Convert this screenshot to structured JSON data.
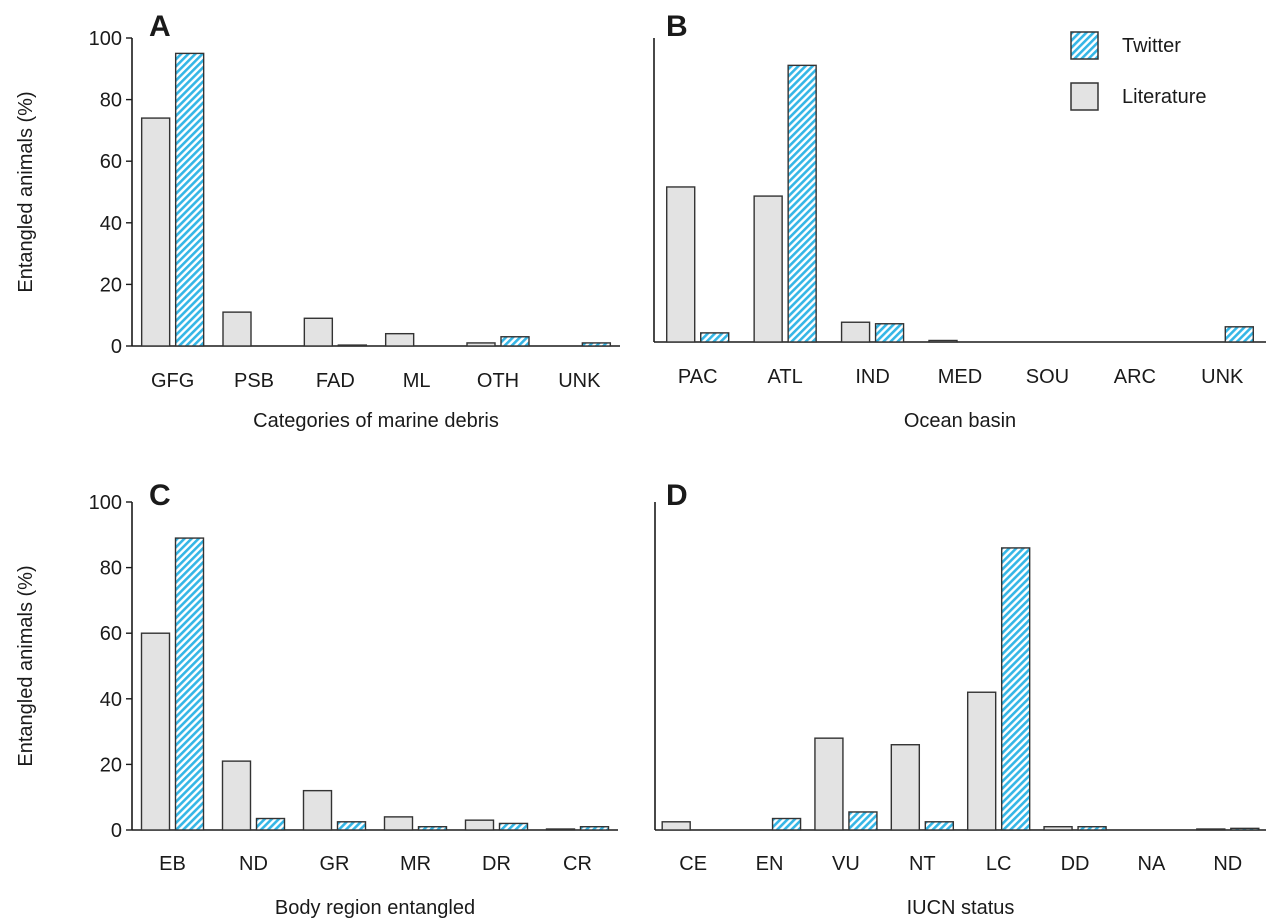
{
  "legend": {
    "twitter": "Twitter",
    "literature": "Literature"
  },
  "colors": {
    "literature_fill": "#e3e3e3",
    "twitter_stripe": "#35b6e6",
    "outline": "#333333"
  },
  "chart_data": [
    {
      "type": "bar",
      "panel": "A",
      "categories": [
        "GFG",
        "PSB",
        "FAD",
        "ML",
        "OTH",
        "UNK"
      ],
      "series": [
        {
          "name": "Literature",
          "values": [
            74,
            11,
            9,
            4,
            1,
            0
          ]
        },
        {
          "name": "Twitter",
          "values": [
            95,
            0,
            0.3,
            0,
            3,
            1
          ]
        }
      ],
      "xlabel": "Categories of marine debris",
      "ylabel": "Entangled animals (%)",
      "ylim": [
        0,
        100
      ],
      "yticks": [
        0,
        20,
        40,
        60,
        80,
        100
      ]
    },
    {
      "type": "bar",
      "panel": "B",
      "categories": [
        "PAC",
        "ATL",
        "IND",
        "MED",
        "SOU",
        "ARC",
        "UNK"
      ],
      "series": [
        {
          "name": "Literature",
          "values": [
            51,
            48,
            6.5,
            0.5,
            0,
            0,
            0
          ]
        },
        {
          "name": "Twitter",
          "values": [
            3,
            91,
            6,
            0,
            0,
            0,
            5
          ]
        }
      ],
      "xlabel": "Ocean basin",
      "ylabel": "",
      "ylim": [
        0,
        100
      ],
      "yticks": []
    },
    {
      "type": "bar",
      "panel": "C",
      "categories": [
        "EB",
        "ND",
        "GR",
        "MR",
        "DR",
        "CR"
      ],
      "series": [
        {
          "name": "Literature",
          "values": [
            60,
            21,
            12,
            4,
            3,
            0.3
          ]
        },
        {
          "name": "Twitter",
          "values": [
            89,
            3.5,
            2.5,
            1,
            2,
            1
          ]
        }
      ],
      "xlabel": "Body region entangled",
      "ylabel": "Entangled animals (%)",
      "ylim": [
        0,
        100
      ],
      "yticks": [
        0,
        20,
        40,
        60,
        80,
        100
      ]
    },
    {
      "type": "bar",
      "panel": "D",
      "categories": [
        "CE",
        "EN",
        "VU",
        "NT",
        "LC",
        "DD",
        "NA",
        "ND"
      ],
      "series": [
        {
          "name": "Literature",
          "values": [
            2.5,
            0,
            28,
            26,
            42,
            1,
            0,
            0.3
          ]
        },
        {
          "name": "Twitter",
          "values": [
            0,
            3.5,
            5.5,
            2.5,
            86,
            1,
            0,
            0.5
          ]
        }
      ],
      "xlabel": "IUCN status",
      "ylabel": "",
      "ylim": [
        0,
        100
      ],
      "yticks": []
    }
  ]
}
